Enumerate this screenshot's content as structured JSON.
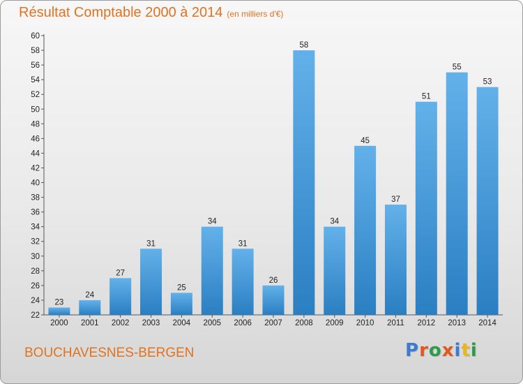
{
  "page": {
    "title": "Résultat Comptable 2000 à 2014",
    "subtitle": "(en milliers d'€)",
    "location": "BOUCHAVESNES-BERGEN",
    "brand": "Proxiti",
    "colors": {
      "title": "#e0731f",
      "bar_light": "#63b1ea",
      "bar_dark": "#2a7fc2",
      "brand_letters": [
        "#3b7bd0",
        "#e2581d",
        "#2e9b4a",
        "#e2581d",
        "#3b7bd0",
        "#e8b71c",
        "#2e9b4a"
      ]
    }
  },
  "chart_data": {
    "type": "bar",
    "title": "Résultat Comptable 2000 à 2014",
    "subtitle": "(en milliers d'€)",
    "xlabel": "",
    "ylabel": "",
    "categories": [
      "2000",
      "2001",
      "2002",
      "2003",
      "2004",
      "2005",
      "2006",
      "2007",
      "2008",
      "2009",
      "2010",
      "2011",
      "2012",
      "2013",
      "2014"
    ],
    "values": [
      23,
      24,
      27,
      31,
      25,
      34,
      31,
      26,
      58,
      34,
      45,
      37,
      51,
      55,
      53
    ],
    "ylim": [
      22,
      60
    ],
    "yticks": [
      22,
      24,
      26,
      28,
      30,
      32,
      34,
      36,
      38,
      40,
      42,
      44,
      46,
      48,
      50,
      52,
      54,
      56,
      58,
      60
    ],
    "grid": false,
    "data_labels": true
  }
}
